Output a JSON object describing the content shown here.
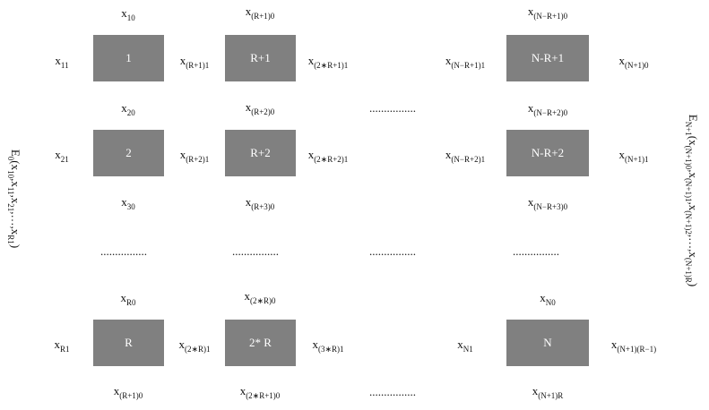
{
  "boxes": [
    {
      "label": "1"
    },
    {
      "label": "R+1"
    },
    {
      "label": "N-R+1"
    },
    {
      "label": "2"
    },
    {
      "label": "R+2"
    },
    {
      "label": "N-R+2"
    },
    {
      "label": "R"
    },
    {
      "label": "2* R"
    },
    {
      "label": "N"
    }
  ],
  "variables": [
    {
      "base": "x",
      "sub": "10"
    },
    {
      "base": "x",
      "sub": "11"
    },
    {
      "base": "x",
      "sub": "20"
    },
    {
      "base": "x",
      "sub": "21"
    },
    {
      "base": "x",
      "sub": "30"
    },
    {
      "base": "x",
      "sub": "R0"
    },
    {
      "base": "x",
      "sub": "R1"
    },
    {
      "base": "x",
      "sub": "(R+1)0"
    },
    {
      "base": "x",
      "sub": "(R+1)1"
    },
    {
      "base": "x",
      "sub": "(R+2)1"
    },
    {
      "base": "x",
      "sub": "(2∗R)1"
    },
    {
      "base": "x",
      "sub": "(R+1)0"
    },
    {
      "base": "x",
      "sub": "(R+2)0"
    },
    {
      "base": "x",
      "sub": "(R+3)0"
    },
    {
      "base": "x",
      "sub": "(2∗R)0"
    },
    {
      "base": "x",
      "sub": "(2∗R+1)0"
    },
    {
      "base": "x",
      "sub": "(2∗R+1)1"
    },
    {
      "base": "x",
      "sub": "(2∗R+2)1"
    },
    {
      "base": "x",
      "sub": "(3∗R)1"
    },
    {
      "base": "x",
      "sub": "(N−R+1)0"
    },
    {
      "base": "x",
      "sub": "(N−R+1)1"
    },
    {
      "base": "x",
      "sub": "(N+1)0"
    },
    {
      "base": "x",
      "sub": "(N−R+2)0"
    },
    {
      "base": "x",
      "sub": "(N−R+2)1"
    },
    {
      "base": "x",
      "sub": "(N+1)1"
    },
    {
      "base": "x",
      "sub": "(N−R+3)0"
    },
    {
      "base": "x",
      "sub": "N0"
    },
    {
      "base": "x",
      "sub": "N1"
    },
    {
      "base": "x",
      "sub": "(N+1)(R−1)"
    },
    {
      "base": "x",
      "sub": "(N+1)R"
    }
  ],
  "dots": [
    "................",
    "................",
    "................",
    "................",
    "................",
    "................",
    "................"
  ],
  "left_formula": [
    {
      "text": "E",
      "sub": "0"
    },
    {
      "text": "(x",
      "sub": "10"
    },
    {
      "text": ",x",
      "sub": "11"
    },
    {
      "text": ",x",
      "sub": "21"
    },
    {
      "text": ",…,x",
      "sub": "R1"
    },
    {
      "text": ")"
    }
  ],
  "right_formula": [
    {
      "text": "E",
      "sub": "N+1"
    },
    {
      "text": "(x",
      "sub": "(N+1)0"
    },
    {
      "text": ",x",
      "sub": "(N+1)1"
    },
    {
      "text": ",x",
      "sub": "(N+1)2"
    },
    {
      "text": ",…,x",
      "sub": "(N+1)R"
    },
    {
      "text": ")"
    }
  ]
}
